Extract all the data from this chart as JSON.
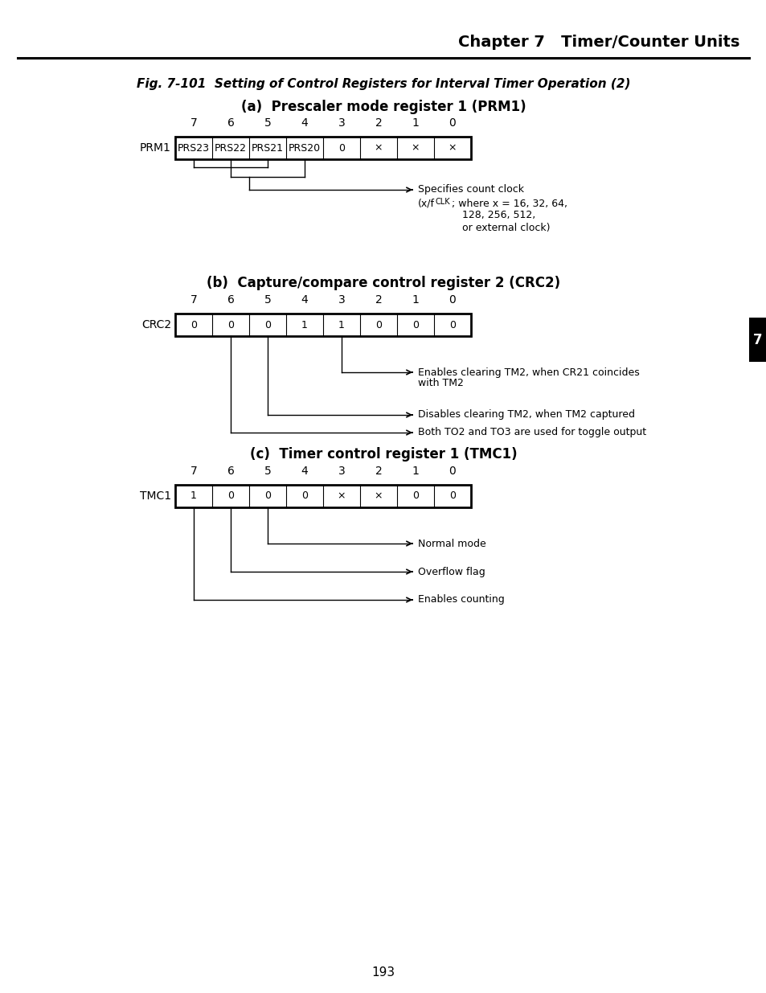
{
  "page_title": "Chapter 7   Timer/Counter Units",
  "fig_title": "Fig. 7-101  Setting of Control Registers for Interval Timer Operation (2)",
  "section_a_title": "(a)  Prescaler mode register 1 (PRM1)",
  "section_b_title": "(b)  Capture/compare control register 2 (CRC2)",
  "section_c_title": "(c)  Timer control register 1 (TMC1)",
  "page_number": "193",
  "tab_marker": "7",
  "prm1_label": "PRM1",
  "prm1_bits": [
    "PRS23",
    "PRS22",
    "PRS21",
    "PRS20",
    "0",
    "×",
    "×",
    "×"
  ],
  "prm1_positions": [
    "7",
    "6",
    "5",
    "4",
    "3",
    "2",
    "1",
    "0"
  ],
  "crc2_label": "CRC2",
  "crc2_bits": [
    "0",
    "0",
    "0",
    "1",
    "1",
    "0",
    "0",
    "0"
  ],
  "crc2_positions": [
    "7",
    "6",
    "5",
    "4",
    "3",
    "2",
    "1",
    "0"
  ],
  "tmc1_label": "TMC1",
  "tmc1_bits": [
    "1",
    "0",
    "0",
    "0",
    "×",
    "×",
    "0",
    "0"
  ],
  "tmc1_positions": [
    "7",
    "6",
    "5",
    "4",
    "3",
    "2",
    "1",
    "0"
  ],
  "ann_specifies": "Specifies count clock",
  "ann_xfclk": "(x/f",
  "ann_clk_suffix": "CLK",
  "ann_clk_rest": "; where x = 16, 32, 64,",
  "ann_clk_line2": "128, 256, 512,",
  "ann_clk_line3": "or external clock)",
  "ann_enables_clr": "Enables clearing TM2, when CR21 coincides",
  "ann_enables_clr2": "with TM2",
  "ann_disables_clr": "Disables clearing TM2, when TM2 captured",
  "ann_both_to": "Both TO2 and TO3 are used for toggle output",
  "ann_normal": "Normal mode",
  "ann_overflow": "Overflow flag",
  "ann_enables_cnt": "Enables counting",
  "bg": "#ffffff",
  "fg": "#000000"
}
